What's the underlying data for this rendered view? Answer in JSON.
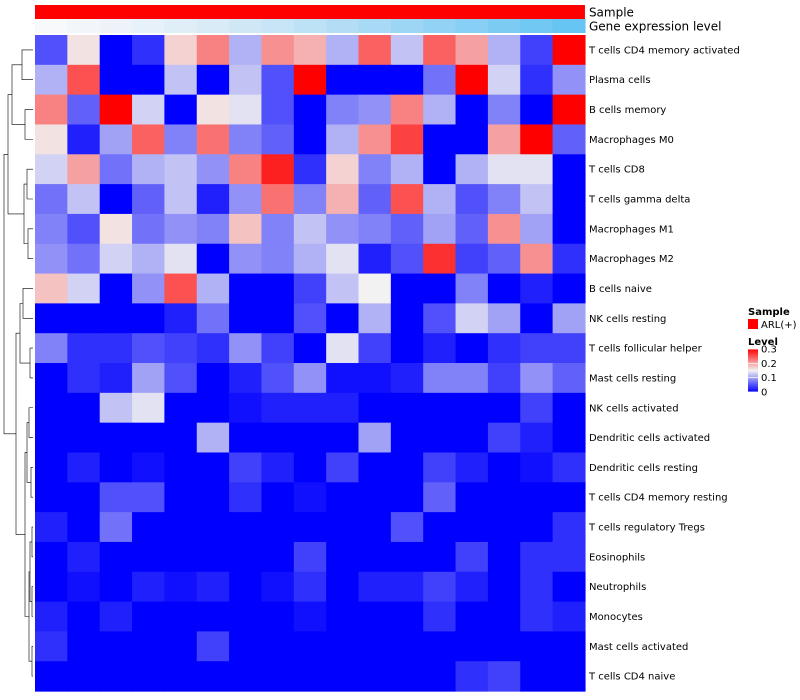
{
  "chart_data": {
    "type": "heatmap",
    "rows": [
      "T cells CD4 memory activated",
      "Plasma cells",
      "B cells memory",
      "Macrophages M0",
      "T cells CD8",
      "T cells gamma delta",
      "Macrophages M1",
      "Macrophages M2",
      "B cells naive",
      "NK cells resting",
      "T cells follicular helper",
      "Mast cells resting",
      "NK cells activated",
      "Dendritic cells activated",
      "Dendritic cells resting",
      "T cells CD4 memory resting",
      "T cells regulatory  Tregs",
      "Eosinophils",
      "Neutrophils",
      "Monocytes",
      "Mast cells activated",
      "T cells CD4 naive"
    ],
    "n_columns": 17,
    "values": [
      [
        0.05,
        0.16,
        0.0,
        0.03,
        0.17,
        0.22,
        0.11,
        0.21,
        0.19,
        0.11,
        0.24,
        0.12,
        0.24,
        0.2,
        0.11,
        0.04,
        0.3
      ],
      [
        0.11,
        0.25,
        0.0,
        0.0,
        0.12,
        0.0,
        0.12,
        0.05,
        0.3,
        0.0,
        0.0,
        0.0,
        0.07,
        0.3,
        0.13,
        0.03,
        0.09
      ],
      [
        0.22,
        0.06,
        0.3,
        0.13,
        0.0,
        0.16,
        0.14,
        0.05,
        0.0,
        0.08,
        0.09,
        0.22,
        0.11,
        0.0,
        0.08,
        0.0,
        0.3
      ],
      [
        0.16,
        0.02,
        0.1,
        0.24,
        0.08,
        0.23,
        0.08,
        0.06,
        0.0,
        0.11,
        0.21,
        0.26,
        0.0,
        0.0,
        0.2,
        0.3,
        0.06
      ],
      [
        0.13,
        0.2,
        0.07,
        0.11,
        0.12,
        0.09,
        0.22,
        0.28,
        0.03,
        0.17,
        0.08,
        0.11,
        0.0,
        0.11,
        0.14,
        0.14,
        0.0
      ],
      [
        0.07,
        0.12,
        0.0,
        0.06,
        0.12,
        0.02,
        0.09,
        0.23,
        0.08,
        0.19,
        0.06,
        0.25,
        0.11,
        0.05,
        0.08,
        0.12,
        0.0
      ],
      [
        0.08,
        0.05,
        0.16,
        0.07,
        0.09,
        0.08,
        0.18,
        0.08,
        0.12,
        0.09,
        0.08,
        0.06,
        0.1,
        0.06,
        0.21,
        0.1,
        0.0
      ],
      [
        0.09,
        0.07,
        0.13,
        0.11,
        0.14,
        0.0,
        0.09,
        0.08,
        0.11,
        0.14,
        0.02,
        0.05,
        0.27,
        0.04,
        0.06,
        0.21,
        0.03
      ],
      [
        0.18,
        0.13,
        0.0,
        0.09,
        0.25,
        0.11,
        0.0,
        0.0,
        0.04,
        0.12,
        0.15,
        0.0,
        0.0,
        0.08,
        0.0,
        0.02,
        0.0
      ],
      [
        0.0,
        0.0,
        0.0,
        0.0,
        0.02,
        0.07,
        0.0,
        0.0,
        0.05,
        0.0,
        0.11,
        0.0,
        0.05,
        0.13,
        0.1,
        0.0,
        0.1
      ],
      [
        0.08,
        0.03,
        0.03,
        0.05,
        0.04,
        0.03,
        0.09,
        0.04,
        0.0,
        0.14,
        0.04,
        0.0,
        0.02,
        0.0,
        0.03,
        0.04,
        0.04
      ],
      [
        0.0,
        0.03,
        0.02,
        0.1,
        0.05,
        0.0,
        0.02,
        0.05,
        0.09,
        0.01,
        0.01,
        0.02,
        0.08,
        0.08,
        0.04,
        0.09,
        0.06
      ],
      [
        0.0,
        0.0,
        0.12,
        0.14,
        0.0,
        0.0,
        0.01,
        0.02,
        0.02,
        0.02,
        0.0,
        0.0,
        0.0,
        0.0,
        0.0,
        0.04,
        0.0
      ],
      [
        0.0,
        0.0,
        0.0,
        0.0,
        0.0,
        0.11,
        0.0,
        0.0,
        0.0,
        0.0,
        0.1,
        0.0,
        0.0,
        0.0,
        0.04,
        0.02,
        0.0
      ],
      [
        0.0,
        0.02,
        0.0,
        0.01,
        0.0,
        0.0,
        0.04,
        0.02,
        0.0,
        0.04,
        0.0,
        0.0,
        0.04,
        0.02,
        0.0,
        0.01,
        0.03
      ],
      [
        0.0,
        0.0,
        0.05,
        0.05,
        0.0,
        0.0,
        0.03,
        0.0,
        0.01,
        0.0,
        0.0,
        0.0,
        0.06,
        0.0,
        0.0,
        0.0,
        0.0
      ],
      [
        0.02,
        0.0,
        0.07,
        0.0,
        0.0,
        0.0,
        0.0,
        0.0,
        0.0,
        0.0,
        0.0,
        0.05,
        0.0,
        0.0,
        0.0,
        0.0,
        0.03
      ],
      [
        0.0,
        0.02,
        0.0,
        0.0,
        0.0,
        0.0,
        0.0,
        0.0,
        0.04,
        0.0,
        0.0,
        0.0,
        0.0,
        0.04,
        0.0,
        0.03,
        0.03
      ],
      [
        0.0,
        0.01,
        0.0,
        0.02,
        0.01,
        0.02,
        0.0,
        0.01,
        0.03,
        0.0,
        0.02,
        0.02,
        0.04,
        0.02,
        0.0,
        0.03,
        0.0
      ],
      [
        0.02,
        0.0,
        0.02,
        0.0,
        0.0,
        0.0,
        0.0,
        0.0,
        0.01,
        0.0,
        0.0,
        0.0,
        0.03,
        0.0,
        0.0,
        0.03,
        0.02
      ],
      [
        0.03,
        0.0,
        0.0,
        0.0,
        0.0,
        0.04,
        0.0,
        0.0,
        0.0,
        0.0,
        0.0,
        0.0,
        0.0,
        0.0,
        0.0,
        0.0,
        0.0
      ],
      [
        0.0,
        0.0,
        0.0,
        0.0,
        0.0,
        0.0,
        0.0,
        0.0,
        0.0,
        0.0,
        0.0,
        0.0,
        0.0,
        0.03,
        0.04,
        0.0,
        0.0
      ]
    ],
    "color_scale": {
      "domain": [
        0,
        0.15,
        0.3
      ],
      "colors": [
        "#0000ff",
        "#f2f2f2",
        "#ff0000"
      ]
    },
    "column_annotations": [
      {
        "name": "Sample",
        "values": [
          "ARL(+)",
          "ARL(+)",
          "ARL(+)",
          "ARL(+)",
          "ARL(+)",
          "ARL(+)",
          "ARL(+)",
          "ARL(+)",
          "ARL(+)",
          "ARL(+)",
          "ARL(+)",
          "ARL(+)",
          "ARL(+)",
          "ARL(+)",
          "ARL(+)",
          "ARL(+)",
          "ARL(+)"
        ],
        "color": "#ff0000"
      },
      {
        "name": "Gene expression level",
        "colors": [
          "#f7f9fb",
          "#f2f6fa",
          "#edf3f9",
          "#e6f1f9",
          "#e0eef8",
          "#d9ebf7",
          "#d0e8f6",
          "#c7e5f6",
          "#bde2f6",
          "#b2ddf5",
          "#a8daf5",
          "#9dd6f4",
          "#92d2f4",
          "#87cff4",
          "#7ccbf3",
          "#71c8f3",
          "#66c5f2"
        ]
      }
    ],
    "legends": [
      {
        "title": "Sample",
        "items": [
          {
            "label": "ARL(+)",
            "color": "#ff0000"
          }
        ]
      },
      {
        "title": "Level",
        "ticks": [
          "0.3",
          "0.2",
          "0.1",
          "0"
        ],
        "tick_values": [
          0.3,
          0.2,
          0.1,
          0
        ]
      }
    ],
    "row_dendrogram": true
  }
}
